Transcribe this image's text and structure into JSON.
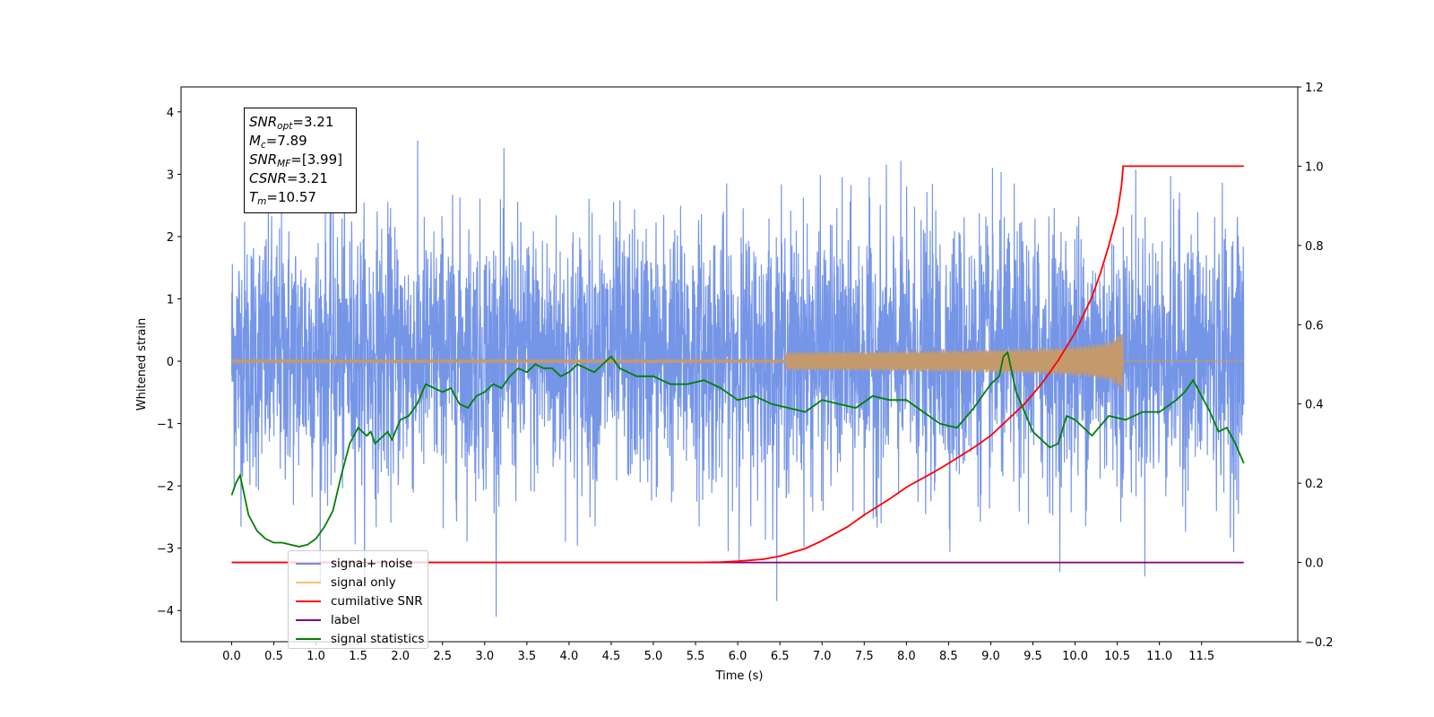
{
  "chart_data": {
    "type": "line",
    "xlabel": "Time (s)",
    "ylabel": "Whitened strain",
    "xlim": [
      -0.6,
      12.64
    ],
    "ylim": [
      -4.5,
      4.4
    ],
    "y2lim": [
      -0.2,
      1.2
    ],
    "x_ticks": [
      "0.0",
      "0.5",
      "1.0",
      "1.5",
      "2.0",
      "2.5",
      "3.0",
      "3.5",
      "4.0",
      "4.5",
      "5.0",
      "5.5",
      "6.0",
      "6.5",
      "7.0",
      "7.5",
      "8.0",
      "8.5",
      "9.0",
      "9.5",
      "10.0",
      "10.5",
      "11.0",
      "11.5"
    ],
    "y_ticks": [
      "4",
      "3",
      "2",
      "1",
      "0",
      "−1",
      "−2",
      "−3",
      "−4"
    ],
    "y2_ticks": [
      "1.2",
      "1.0",
      "0.8",
      "0.6",
      "0.4",
      "0.2",
      "0.0",
      "−0.2"
    ],
    "annotation": {
      "snr_opt": "3.21",
      "mc": "7.89",
      "snr_mf": "[3.99]",
      "csnr": "3.21",
      "tm": "10.57"
    },
    "legend": {
      "placement": "lower-left",
      "entries": [
        "signal+ noise",
        "signal only",
        "cumilative SNR",
        "label",
        "signal statistics"
      ]
    },
    "series": [
      {
        "name": "signal+ noise",
        "axis": "left",
        "color": "#6e8fe6",
        "style": "gaussian-noise band",
        "x_range": [
          0.0,
          12.0
        ],
        "mean": 0.1,
        "std": 1.05,
        "approx_max": 4.0,
        "approx_min": -4.1
      },
      {
        "name": "signal only",
        "axis": "left",
        "color": "#c49a6c",
        "style": "chirp",
        "x_range": [
          0.0,
          12.0
        ],
        "merger_time": 10.57,
        "peak_amplitude": 0.45
      },
      {
        "name": "cumilative SNR",
        "axis": "right",
        "color": "#ff0000",
        "x": [
          0,
          5.5,
          5.8,
          6.0,
          6.3,
          6.5,
          6.8,
          7.0,
          7.3,
          7.5,
          7.8,
          8.0,
          8.3,
          8.5,
          8.8,
          9.0,
          9.2,
          9.4,
          9.6,
          9.8,
          10.0,
          10.2,
          10.3,
          10.4,
          10.5,
          10.55,
          10.57,
          12.0
        ],
        "y": [
          0,
          0,
          0.001,
          0.003,
          0.008,
          0.016,
          0.035,
          0.055,
          0.09,
          0.12,
          0.16,
          0.19,
          0.225,
          0.25,
          0.29,
          0.32,
          0.36,
          0.4,
          0.45,
          0.51,
          0.58,
          0.67,
          0.73,
          0.8,
          0.88,
          0.95,
          1.0,
          1.0
        ]
      },
      {
        "name": "label",
        "axis": "right",
        "color": "#800080",
        "x": [
          0,
          12.0
        ],
        "y": [
          0,
          0
        ]
      },
      {
        "name": "signal statistics",
        "axis": "right",
        "color": "#008000",
        "x": [
          0,
          0.05,
          0.1,
          0.2,
          0.3,
          0.4,
          0.5,
          0.6,
          0.7,
          0.8,
          0.9,
          1.0,
          1.1,
          1.2,
          1.3,
          1.4,
          1.5,
          1.6,
          1.65,
          1.7,
          1.8,
          1.85,
          1.9,
          2.0,
          2.1,
          2.2,
          2.3,
          2.4,
          2.5,
          2.6,
          2.7,
          2.8,
          2.9,
          3.0,
          3.1,
          3.2,
          3.3,
          3.4,
          3.5,
          3.6,
          3.7,
          3.8,
          3.9,
          4.0,
          4.1,
          4.2,
          4.3,
          4.4,
          4.5,
          4.6,
          4.7,
          4.8,
          4.9,
          5.0,
          5.2,
          5.4,
          5.6,
          5.8,
          6.0,
          6.2,
          6.4,
          6.6,
          6.8,
          7.0,
          7.2,
          7.4,
          7.6,
          7.8,
          8.0,
          8.2,
          8.4,
          8.6,
          8.8,
          9.0,
          9.1,
          9.15,
          9.2,
          9.3,
          9.5,
          9.7,
          9.8,
          9.9,
          10.0,
          10.2,
          10.4,
          10.6,
          10.8,
          11.0,
          11.2,
          11.3,
          11.4,
          11.6,
          11.7,
          11.8,
          11.9,
          12.0
        ],
        "y": [
          0.17,
          0.2,
          0.22,
          0.12,
          0.08,
          0.06,
          0.05,
          0.05,
          0.045,
          0.04,
          0.045,
          0.06,
          0.09,
          0.13,
          0.22,
          0.3,
          0.34,
          0.32,
          0.33,
          0.3,
          0.32,
          0.33,
          0.31,
          0.36,
          0.37,
          0.4,
          0.45,
          0.44,
          0.43,
          0.44,
          0.4,
          0.39,
          0.42,
          0.43,
          0.45,
          0.44,
          0.47,
          0.49,
          0.48,
          0.5,
          0.49,
          0.49,
          0.47,
          0.48,
          0.5,
          0.49,
          0.48,
          0.5,
          0.52,
          0.49,
          0.48,
          0.47,
          0.47,
          0.47,
          0.45,
          0.45,
          0.46,
          0.44,
          0.41,
          0.42,
          0.4,
          0.39,
          0.38,
          0.41,
          0.4,
          0.39,
          0.42,
          0.41,
          0.41,
          0.38,
          0.35,
          0.34,
          0.39,
          0.45,
          0.47,
          0.52,
          0.53,
          0.43,
          0.33,
          0.29,
          0.3,
          0.37,
          0.36,
          0.32,
          0.37,
          0.36,
          0.38,
          0.38,
          0.41,
          0.43,
          0.46,
          0.38,
          0.33,
          0.34,
          0.3,
          0.25
        ]
      }
    ]
  }
}
